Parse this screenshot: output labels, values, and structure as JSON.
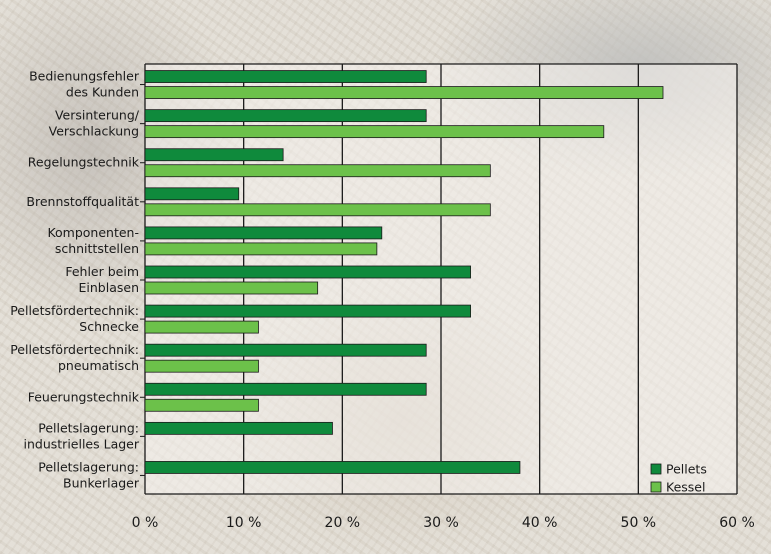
{
  "chart_data": {
    "type": "bar",
    "orientation": "horizontal",
    "categories": [
      [
        "Bedienungsfehler",
        "des Kunden"
      ],
      [
        "Versinterung/",
        "Verschlackung"
      ],
      [
        "Regelungstechnik"
      ],
      [
        "Brennstoffqualität"
      ],
      [
        "Komponenten-",
        "schnittstellen"
      ],
      [
        "Fehler beim",
        "Einblasen"
      ],
      [
        "Pelletsfördertechnik:",
        "Schnecke"
      ],
      [
        "Pelletsfördertechnik:",
        "pneumatisch"
      ],
      [
        "Feuerungstechnik"
      ],
      [
        "Pelletslagerung:",
        "industrielles Lager"
      ],
      [
        "Pelletslagerung:",
        "Bunkerlager"
      ]
    ],
    "series": [
      {
        "name": "Pellets",
        "color": "#0f8a3c",
        "values": [
          28.5,
          28.5,
          14.0,
          9.5,
          24.0,
          33.0,
          33.0,
          28.5,
          28.5,
          19.0,
          38.0
        ]
      },
      {
        "name": "Kessel",
        "color": "#6cc14a",
        "values": [
          52.5,
          46.5,
          35.0,
          35.0,
          23.5,
          17.5,
          11.5,
          11.5,
          11.5,
          null,
          null
        ]
      }
    ],
    "xlim": [
      0,
      60
    ],
    "xticks": [
      0,
      10,
      20,
      30,
      40,
      50,
      60
    ],
    "tick_suffix": " %",
    "legend_position": "bottom-right",
    "grid": true
  }
}
